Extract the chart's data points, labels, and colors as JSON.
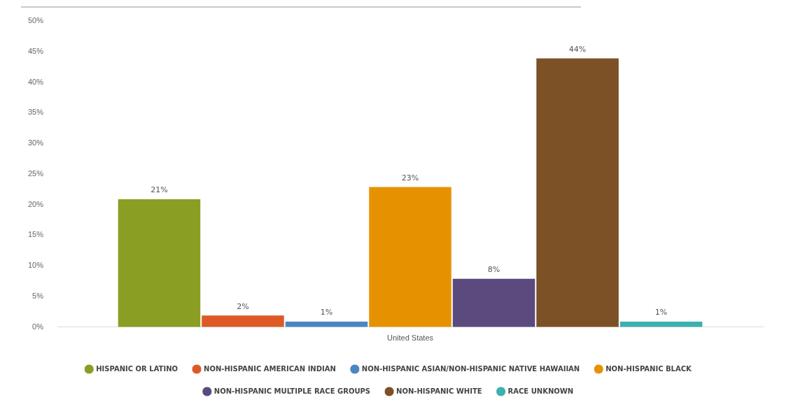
{
  "chart_data": {
    "type": "bar",
    "categories": [
      "United States"
    ],
    "series": [
      {
        "name": "HISPANIC OR LATINO",
        "color": "#8a9e24",
        "values": [
          21
        ],
        "value_labels": [
          "21%"
        ]
      },
      {
        "name": "NON-HISPANIC AMERICAN INDIAN",
        "color": "#dd5a26",
        "values": [
          2
        ],
        "value_labels": [
          "2%"
        ]
      },
      {
        "name": "NON-HISPANIC ASIAN/NON-HISPANIC NATIVE HAWAIIAN",
        "color": "#4a86c4",
        "values": [
          1
        ],
        "value_labels": [
          "1%"
        ]
      },
      {
        "name": "NON-HISPANIC BLACK",
        "color": "#e69200",
        "values": [
          23
        ],
        "value_labels": [
          "23%"
        ]
      },
      {
        "name": "NON-HISPANIC MULTIPLE RACE GROUPS",
        "color": "#5b4a7e",
        "values": [
          8
        ],
        "value_labels": [
          "8%"
        ]
      },
      {
        "name": "NON-HISPANIC WHITE",
        "color": "#7d5126",
        "values": [
          44
        ],
        "value_labels": [
          "44%"
        ]
      },
      {
        "name": "RACE UNKNOWN",
        "color": "#3cb1b0",
        "values": [
          1
        ],
        "value_labels": [
          "1%"
        ]
      }
    ],
    "ylim": [
      0,
      50
    ],
    "yticks": [
      {
        "value": 0,
        "label": "0%"
      },
      {
        "value": 5,
        "label": "5%"
      },
      {
        "value": 10,
        "label": "10%"
      },
      {
        "value": 15,
        "label": "15%"
      },
      {
        "value": 20,
        "label": "20%"
      },
      {
        "value": 25,
        "label": "25%"
      },
      {
        "value": 30,
        "label": "30%"
      },
      {
        "value": 35,
        "label": "35%"
      },
      {
        "value": 40,
        "label": "40%"
      },
      {
        "value": 45,
        "label": "45%"
      },
      {
        "value": 50,
        "label": "50%"
      }
    ],
    "grid": false,
    "legend": "bottom",
    "marker": "circle"
  }
}
